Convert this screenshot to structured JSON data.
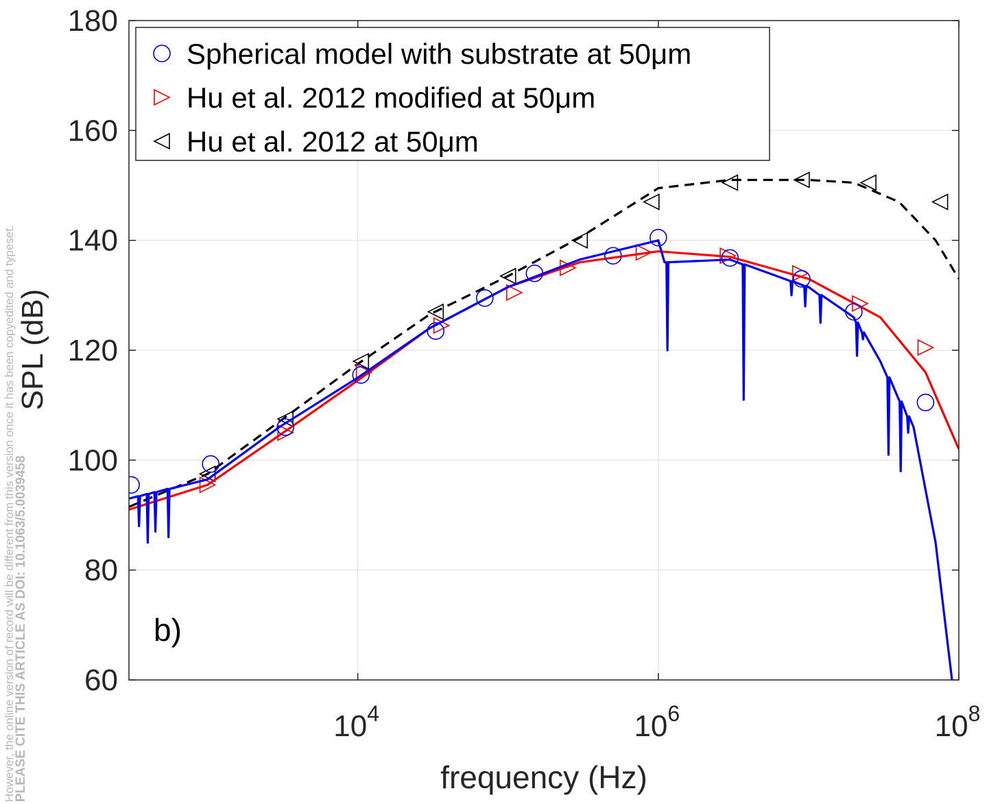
{
  "side_notes": {
    "line1": "However, the online version of record will be different from this version once it has been copyedited and typeset.",
    "line2": "PLEASE CITE THIS ARTICLE AS DOI: 10.1063/5.0039458"
  },
  "chart_data": {
    "type": "line",
    "title": "",
    "panel_label": "b)",
    "xlabel": "frequency (Hz)",
    "ylabel": "SPL (dB)",
    "xscale": "log",
    "xlim": [
      300,
      100000000
    ],
    "ylim": [
      60,
      180
    ],
    "yticks": [
      60,
      80,
      100,
      120,
      140,
      160,
      180
    ],
    "xticks": [
      {
        "base": "10",
        "exp": "4",
        "value": 10000
      },
      {
        "base": "10",
        "exp": "6",
        "value": 1000000
      },
      {
        "base": "10",
        "exp": "8",
        "value": 100000000
      }
    ],
    "grid": true,
    "legend_position": "top-left",
    "series": [
      {
        "name": "Spherical model with substrate at 50μm",
        "color": "#0000ff",
        "line_style": "solid",
        "marker": "circle",
        "curve": {
          "x": [
            300,
            1000,
            3000,
            10000,
            30000,
            100000,
            300000,
            1000000,
            1100000,
            3000000,
            10000000,
            20000000,
            30000000,
            50000000,
            70000000,
            90000000
          ],
          "y": [
            93,
            96.5,
            106,
            115,
            124,
            131.5,
            136.5,
            140,
            136,
            136.5,
            131.5,
            126,
            118,
            106,
            85,
            60
          ]
        },
        "dips": [
          {
            "x": 350,
            "y": 88
          },
          {
            "x": 400,
            "y": 85
          },
          {
            "x": 450,
            "y": 87
          },
          {
            "x": 550,
            "y": 86
          },
          {
            "x": 1150000,
            "y": 120
          },
          {
            "x": 3700000,
            "y": 111
          },
          {
            "x": 7700000,
            "y": 130
          },
          {
            "x": 9500000,
            "y": 128
          },
          {
            "x": 12000000,
            "y": 125
          },
          {
            "x": 21000000,
            "y": 119
          },
          {
            "x": 23000000,
            "y": 122
          },
          {
            "x": 34000000,
            "y": 101
          },
          {
            "x": 41000000,
            "y": 98
          },
          {
            "x": 46000000,
            "y": 105
          }
        ],
        "markers": {
          "x": [
            310,
            1050,
            3300,
            10500,
            33000,
            70000,
            150000,
            500000,
            1000000,
            3000000,
            9000000,
            20000000,
            60000000
          ],
          "y": [
            95.5,
            99.3,
            106,
            115.5,
            123.5,
            129.5,
            134,
            137.2,
            140.5,
            136.8,
            133,
            127,
            110.5
          ]
        }
      },
      {
        "name": "Hu et al. 2012 modified at 50μm",
        "color": "#ff0000",
        "line_style": "solid",
        "marker": "triangle-right",
        "curve": {
          "x": [
            300,
            1000,
            3000,
            10000,
            30000,
            100000,
            300000,
            1000000,
            3000000,
            10000000,
            30000000,
            60000000,
            100000000
          ],
          "y": [
            91,
            95.5,
            104.5,
            114.5,
            124,
            131.5,
            136,
            138,
            137,
            133,
            126,
            116,
            102
          ]
        },
        "markers": {
          "x": [
            1000,
            3300,
            11000,
            36000,
            110000,
            250000,
            800000,
            2900000,
            8800000,
            22000000,
            60000000
          ],
          "y": [
            95.5,
            105,
            116,
            124.5,
            130.5,
            135,
            137.8,
            137.2,
            134,
            128.5,
            120.5
          ]
        }
      },
      {
        "name": "Hu et al. 2012 at 50μm",
        "color": "#000000",
        "line_style": "dashed",
        "marker": "triangle-left",
        "curve": {
          "x": [
            300,
            1000,
            3000,
            10000,
            30000,
            100000,
            300000,
            1000000,
            3000000,
            10000000,
            20000000,
            40000000,
            70000000,
            100000000
          ],
          "y": [
            91.5,
            97.5,
            107,
            117.5,
            126.5,
            133.5,
            140.5,
            149.5,
            151,
            151,
            150.5,
            147,
            140,
            133
          ]
        },
        "markers": {
          "x": [
            1000,
            3300,
            10500,
            33000,
            100000,
            300000,
            900000,
            3000000,
            9000000,
            25000000,
            75000000
          ],
          "y": [
            97.5,
            107.5,
            118,
            127,
            133.5,
            140,
            147,
            150.5,
            151,
            150.5,
            147
          ]
        }
      }
    ]
  }
}
